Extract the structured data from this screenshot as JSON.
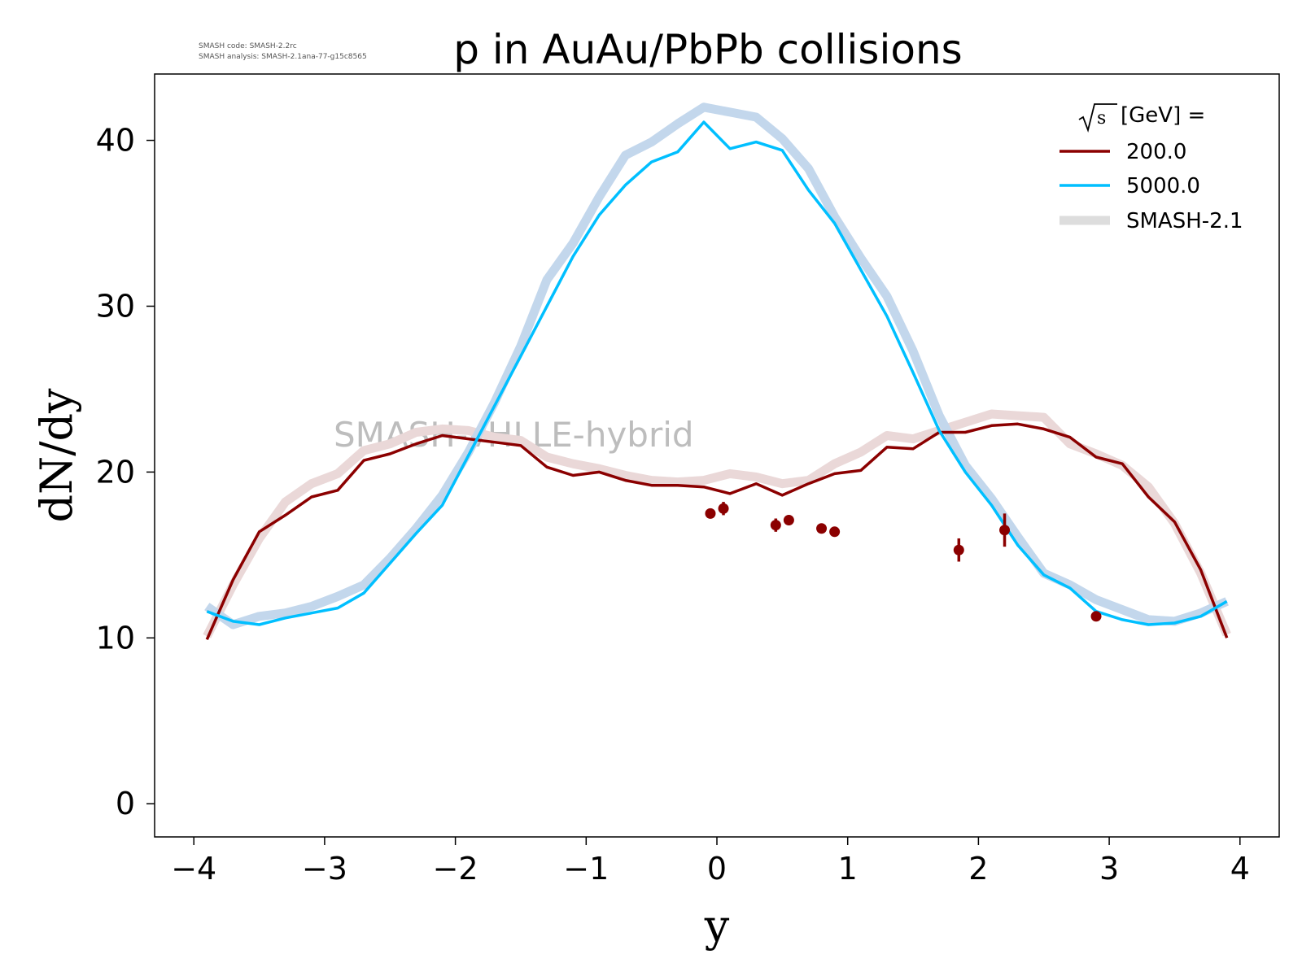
{
  "chart_data": {
    "type": "line",
    "title": "p in AuAu/PbPb collisions",
    "meta_lines": [
      "SMASH code:      SMASH-2.2rc",
      "SMASH analysis: SMASH-2.1ana-77-g15c8565"
    ],
    "watermark": "SMASH-vHLLE-hybrid",
    "xlabel": "y",
    "ylabel": "dN/dy",
    "xlim": [
      -4.3,
      4.3
    ],
    "ylim": [
      -2,
      44
    ],
    "xticks": [
      -4,
      -3,
      -2,
      -1,
      0,
      1,
      2,
      3,
      4
    ],
    "xtick_labels": [
      "−4",
      "−3",
      "−2",
      "−1",
      "0",
      "1",
      "2",
      "3",
      "4"
    ],
    "yticks": [
      0,
      10,
      20,
      30,
      40
    ],
    "ytick_labels": [
      "0",
      "10",
      "20",
      "30",
      "40"
    ],
    "legend": {
      "placement": "top-right",
      "title_root": "s",
      "title_text": " [GeV] =",
      "entries": [
        "200.0",
        "5000.0",
        "SMASH-2.1"
      ]
    },
    "colors": {
      "s200": "#8b0000",
      "s5000": "#00bfff",
      "s200_ref": "#ead8d8",
      "s5000_ref": "#c3d7ec",
      "legend_ref": "#dddddd"
    },
    "x": [
      -3.9,
      -3.7,
      -3.5,
      -3.3,
      -3.1,
      -2.9,
      -2.7,
      -2.5,
      -2.3,
      -2.1,
      -1.9,
      -1.7,
      -1.5,
      -1.3,
      -1.1,
      -0.9,
      -0.7,
      -0.5,
      -0.3,
      -0.1,
      0.1,
      0.3,
      0.5,
      0.7,
      0.9,
      1.1,
      1.3,
      1.5,
      1.7,
      1.9,
      2.1,
      2.3,
      2.5,
      2.7,
      2.9,
      3.1,
      3.3,
      3.5,
      3.7,
      3.9
    ],
    "series": [
      {
        "name": "200.0",
        "values": [
          9.9,
          13.5,
          16.4,
          17.4,
          18.5,
          18.9,
          20.7,
          21.1,
          21.7,
          22.2,
          22.0,
          21.8,
          21.6,
          20.3,
          19.8,
          20.0,
          19.5,
          19.2,
          19.2,
          19.1,
          18.7,
          19.3,
          18.6,
          19.3,
          19.9,
          20.1,
          21.5,
          21.4,
          22.4,
          22.4,
          22.8,
          22.9,
          22.6,
          22.1,
          20.9,
          20.5,
          18.5,
          17.0,
          14.1,
          10.0
        ]
      },
      {
        "name": "5000.0",
        "values": [
          11.6,
          11.0,
          10.8,
          11.2,
          11.5,
          11.8,
          12.7,
          14.5,
          16.3,
          18.0,
          21.0,
          24.0,
          27.0,
          30.0,
          33.0,
          35.5,
          37.3,
          38.7,
          39.3,
          41.1,
          39.5,
          39.9,
          39.4,
          37.0,
          35.0,
          32.2,
          29.4,
          26.0,
          22.5,
          20.0,
          18.0,
          15.6,
          13.8,
          13.0,
          11.6,
          11.1,
          10.8,
          10.9,
          11.3,
          12.2
        ]
      },
      {
        "name": "SMASH-2.1 200.0",
        "values": [
          10.1,
          13.2,
          16.0,
          18.2,
          19.3,
          19.9,
          21.3,
          21.7,
          22.4,
          22.6,
          22.5,
          22.1,
          21.9,
          20.9,
          20.5,
          20.2,
          19.8,
          19.5,
          19.4,
          19.5,
          19.9,
          19.7,
          19.3,
          19.5,
          20.5,
          21.2,
          22.2,
          22.0,
          22.5,
          23.0,
          23.5,
          23.4,
          23.3,
          21.7,
          21.1,
          20.4,
          19.1,
          16.9,
          13.9,
          10.2
        ]
      },
      {
        "name": "SMASH-2.1 5000.0",
        "values": [
          11.9,
          10.8,
          11.3,
          11.5,
          11.9,
          12.5,
          13.2,
          14.8,
          16.6,
          18.6,
          21.2,
          24.2,
          27.6,
          31.6,
          33.8,
          36.6,
          39.1,
          39.9,
          41.0,
          42.0,
          41.7,
          41.4,
          40.1,
          38.3,
          35.4,
          32.9,
          30.6,
          27.3,
          23.4,
          20.4,
          18.4,
          16.1,
          13.9,
          13.2,
          12.3,
          11.7,
          11.1,
          11.0,
          11.5,
          12.2
        ]
      }
    ],
    "points": {
      "name": "200.0 data",
      "x": [
        -0.05,
        0.05,
        0.45,
        0.55,
        0.8,
        0.9,
        1.85,
        2.2,
        2.9
      ],
      "y": [
        17.5,
        17.8,
        16.8,
        17.1,
        16.6,
        16.4,
        15.3,
        16.5,
        11.3
      ],
      "yerr": [
        0.3,
        0.4,
        0.4,
        0.3,
        0.2,
        0.2,
        0.7,
        1.0,
        0.2
      ]
    }
  }
}
